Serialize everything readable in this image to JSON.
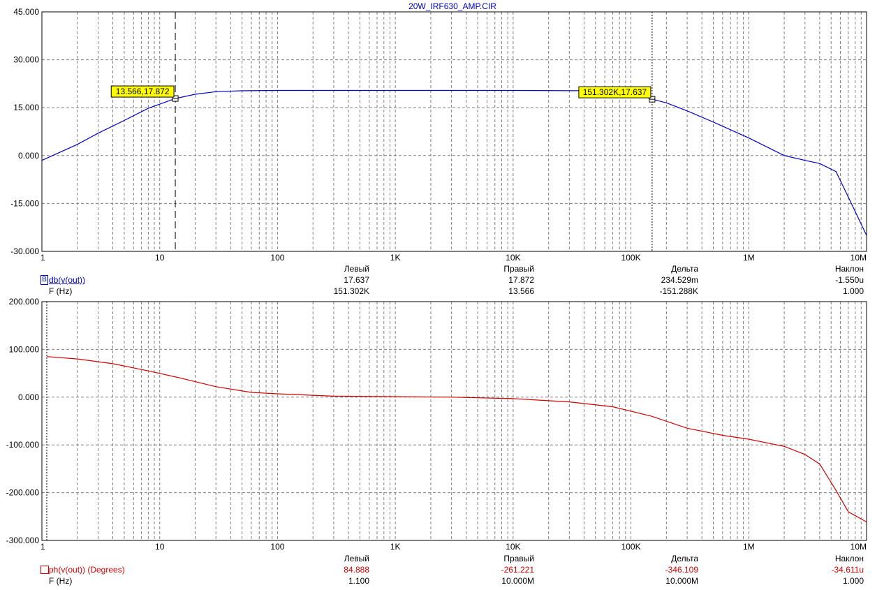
{
  "title": "20W_IRF630_AMP.CIR",
  "colors": {
    "grid": "#7f7f7f",
    "axis": "#000000",
    "series1": "#0000c8",
    "series2": "#d00000",
    "tag_bg": "#ffff00"
  },
  "chart_data": [
    {
      "type": "line",
      "x_scale": "log",
      "xlim": [
        1,
        10000000
      ],
      "ylim": [
        -30,
        45
      ],
      "y_ticks": [
        "45.000",
        "30.000",
        "15.000",
        "0.000",
        "-15.000",
        "-30.000"
      ],
      "x_ticks": [
        "1",
        "10",
        "100",
        "1K",
        "10K",
        "100K",
        "1M",
        "10M"
      ],
      "series": [
        {
          "name": "db(v(out))",
          "color": "#0000c8",
          "x": [
            1,
            2,
            3,
            5,
            8,
            13.566,
            20,
            30,
            50,
            100,
            1000,
            10000,
            50000,
            100000,
            151302,
            200000,
            300000,
            500000,
            1000000,
            2000000,
            3000000,
            4000000,
            5500000,
            7000000,
            10000000
          ],
          "y": [
            -1.5,
            3.5,
            7,
            11,
            14.8,
            17.872,
            19.2,
            20,
            20.3,
            20.4,
            20.4,
            20.4,
            20.3,
            19.7,
            17.637,
            16.5,
            14,
            10.5,
            5.5,
            0,
            -1.5,
            -2.5,
            -5,
            -13,
            -25
          ]
        }
      ],
      "cursors": [
        {
          "x": 13.566,
          "y": 17.872,
          "label": "13.566,17.872",
          "style": "dashed"
        },
        {
          "x": 151302,
          "y": 17.637,
          "label": "151.302K,17.637",
          "style": "dotted"
        }
      ]
    },
    {
      "type": "line",
      "x_scale": "log",
      "xlim": [
        1,
        10000000
      ],
      "ylim": [
        -300,
        200
      ],
      "y_ticks": [
        "200.000",
        "100.000",
        "0.000",
        "-100.000",
        "-200.000",
        "-300.000"
      ],
      "x_ticks": [
        "1",
        "10",
        "100",
        "1K",
        "10K",
        "100K",
        "1M",
        "10M"
      ],
      "series": [
        {
          "name": "ph(v(out)) (Degrees)",
          "color": "#d00000",
          "x": [
            1.1,
            2,
            4,
            8,
            15,
            30,
            60,
            100,
            300,
            1000,
            3000,
            10000,
            30000,
            70000,
            150000,
            300000,
            600000,
            1000000,
            2000000,
            3000000,
            4000000,
            5500000,
            7000000,
            10000000
          ],
          "y": [
            84.888,
            80,
            70,
            55,
            40,
            22,
            10,
            7,
            2,
            1,
            0,
            -3,
            -10,
            -20,
            -40,
            -65,
            -80,
            -88,
            -103,
            -120,
            -140,
            -195,
            -240,
            -261.221
          ]
        }
      ],
      "cursors": [
        {
          "x": 1.1,
          "style": "dotted"
        },
        {
          "x": 10000000,
          "style": "dotted"
        }
      ]
    }
  ],
  "readout1": {
    "headers": [
      "Левый",
      "Правый",
      "Дельта",
      "Наклон"
    ],
    "row1_label": "db(v(out))",
    "row1_badge": "B",
    "row1": [
      "17.637",
      "17.872",
      "234.529m",
      "-1.550u"
    ],
    "row2_label": "F (Hz)",
    "row2": [
      "151.302K",
      "13.566",
      "-151.288K",
      "1.000"
    ]
  },
  "readout2": {
    "headers": [
      "Левый",
      "Правый",
      "Дельта",
      "Наклон"
    ],
    "row1_label": "ph(v(out)) (Degrees)",
    "row1": [
      "84.888",
      "-261.221",
      "-346.109",
      "-34.611u"
    ],
    "row2_label": "F (Hz)",
    "row2": [
      "1.100",
      "10.000M",
      "10.000M",
      "1.000"
    ]
  }
}
